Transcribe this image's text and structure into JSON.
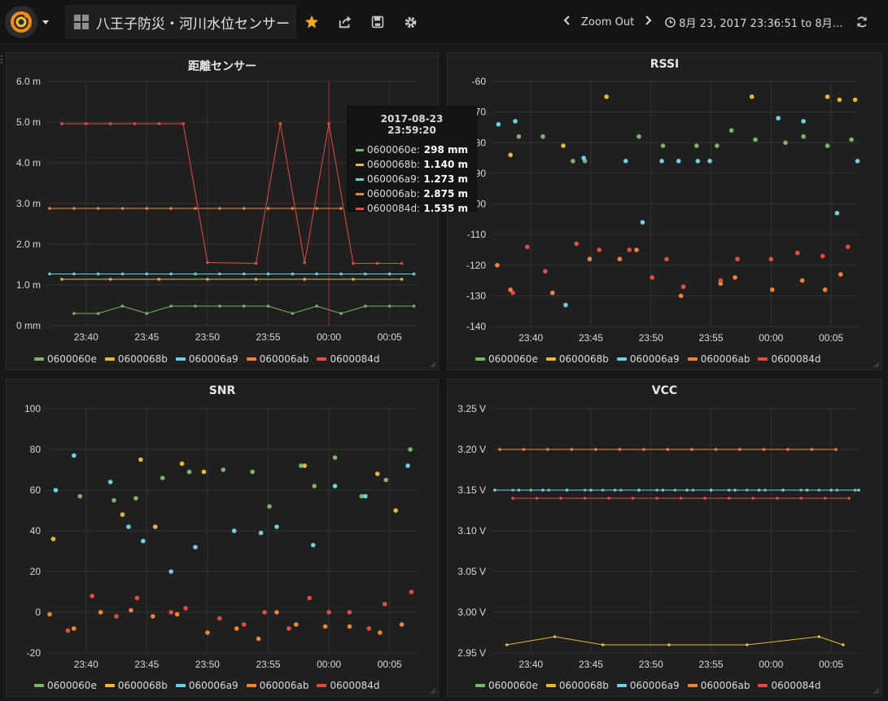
{
  "nav": {
    "title": "八王子防災・河川水位センサー",
    "zoom_out": "Zoom Out",
    "time_range": "8月 23, 2017 23:36:51 to 8月…"
  },
  "colors": {
    "0600060e": "#7eb26d",
    "0600068b": "#eab839",
    "060006a9": "#6ed0e0",
    "060006ab": "#ef843c",
    "0600084d": "#e24d42"
  },
  "series_names": [
    "0600060e",
    "0600068b",
    "060006a9",
    "060006ab",
    "0600084d"
  ],
  "tooltip": {
    "time": "2017-08-23 23:59:20",
    "rows": [
      {
        "name": "0600060e:",
        "value": "298 mm",
        "color": "#7eb26d"
      },
      {
        "name": "0600068b:",
        "value": "1.140 m",
        "color": "#eab839"
      },
      {
        "name": "060006a9:",
        "value": "1.273 m",
        "color": "#6ed0e0"
      },
      {
        "name": "060006ab:",
        "value": "2.875 m",
        "color": "#ef843c"
      },
      {
        "name": "0600084d:",
        "value": "1.535 m",
        "color": "#e24d42"
      }
    ]
  },
  "chart_data": [
    {
      "type": "line",
      "title": "距離センサー",
      "x_ticks": [
        "23:40",
        "23:45",
        "23:50",
        "23:55",
        "00:00",
        "00:05"
      ],
      "y_ticks": [
        "0 mm",
        "1.0 m",
        "2.0 m",
        "3.0 m",
        "4.0 m",
        "5.0 m",
        "6.0 m"
      ],
      "ylim": [
        0,
        6
      ],
      "x_minutes_range": [
        -23.2,
        7.3
      ],
      "cursor_minute": 0,
      "series": [
        {
          "name": "0600060e",
          "x": [
            -21,
            -19,
            -17,
            -15,
            -13,
            -11,
            -9,
            -7,
            -5,
            -3,
            -1,
            1,
            3,
            5,
            7
          ],
          "y": [
            0.3,
            0.3,
            0.48,
            0.3,
            0.48,
            0.48,
            0.48,
            0.48,
            0.48,
            0.3,
            0.48,
            0.3,
            0.48,
            0.48,
            0.48
          ]
        },
        {
          "name": "0600068b",
          "x": [
            -22,
            -18,
            -14,
            -10,
            -6,
            -2,
            2,
            6
          ],
          "y": [
            1.14,
            1.14,
            1.14,
            1.14,
            1.14,
            1.14,
            1.14,
            1.14
          ]
        },
        {
          "name": "060006a9",
          "x": [
            -23,
            -21,
            -19,
            -17,
            -15,
            -13,
            -11,
            -9,
            -7,
            -5,
            -3,
            -1,
            1,
            3,
            5,
            7
          ],
          "y": [
            1.27,
            1.27,
            1.27,
            1.27,
            1.27,
            1.27,
            1.27,
            1.27,
            1.27,
            1.27,
            1.27,
            1.27,
            1.27,
            1.27,
            1.27,
            1.27
          ]
        },
        {
          "name": "060006ab",
          "x": [
            -23,
            -21,
            -19,
            -17,
            -15,
            -13,
            -11,
            -9,
            -7,
            -5,
            -3,
            -1,
            1
          ],
          "y": [
            2.88,
            2.88,
            2.88,
            2.88,
            2.88,
            2.88,
            2.88,
            2.88,
            2.88,
            2.88,
            2.88,
            2.88,
            2.88
          ]
        },
        {
          "name": "0600084d",
          "x": [
            -22,
            -20,
            -18,
            -16,
            -14,
            -12,
            -10,
            -6,
            -4,
            -2,
            0,
            2,
            4,
            6
          ],
          "y": [
            4.96,
            4.96,
            4.96,
            4.96,
            4.96,
            4.96,
            1.55,
            1.53,
            4.96,
            1.55,
            4.96,
            1.53,
            1.53,
            1.53
          ]
        }
      ]
    },
    {
      "type": "scatter",
      "title": "RSSI",
      "x_ticks": [
        "23:40",
        "23:45",
        "23:50",
        "23:55",
        "00:00",
        "00:05"
      ],
      "y_ticks": [
        "-140",
        "-130",
        "-120",
        "-110",
        "-100",
        "-90",
        "-80",
        "-70",
        "-60"
      ],
      "ylim": [
        -140,
        -60
      ],
      "series": [
        {
          "name": "0600060e",
          "x": [
            -21,
            -19,
            -16.5,
            -15.5,
            -11,
            -9,
            -6.2,
            -4.5,
            -3.3,
            -1.3,
            1.2,
            2.7,
            4.7,
            6.7
          ],
          "y": [
            -78,
            -78,
            -86,
            -86,
            -78,
            -81,
            -81,
            -81,
            -76,
            -79,
            -80,
            -78,
            -81,
            -79
          ]
        },
        {
          "name": "0600068b",
          "x": [
            -21.7,
            -17.3,
            -13.7,
            -1.6,
            4.7,
            5.7,
            7.0
          ],
          "y": [
            -84,
            -81,
            -65,
            -65,
            -65,
            -66,
            -66
          ]
        },
        {
          "name": "060006a9",
          "x": [
            -22.7,
            -21.3,
            -17.1,
            -15.6,
            -12.1,
            -10.7,
            -9.1,
            -7.7,
            -6.1,
            -5.1,
            0.6,
            2.7,
            5.5,
            7.2
          ],
          "y": [
            -74,
            -73,
            -133,
            -85,
            -86,
            -106,
            -86,
            -86,
            -86,
            -86,
            -72,
            -73,
            -103,
            -86
          ]
        },
        {
          "name": "060006ab",
          "x": [
            -22.8,
            -21.7,
            -18.2,
            -15.1,
            -12.6,
            -11.2,
            -7.5,
            -4.2,
            -3.0,
            0.1,
            2.6,
            4.5,
            5.8
          ],
          "y": [
            -120,
            -128,
            -129,
            -118,
            -118,
            -115,
            -130,
            -126,
            -124,
            -128,
            -125,
            -128,
            -123
          ]
        },
        {
          "name": "0600084d",
          "x": [
            -21.5,
            -20.3,
            -18.8,
            -16.2,
            -14.3,
            -11.8,
            -9.9,
            -8.7,
            -7.3,
            -4.2,
            -2.8,
            0.0,
            2.2,
            4.3,
            6.4
          ],
          "y": [
            -129,
            -114,
            -122,
            -113,
            -115,
            -115,
            -124,
            -118,
            -127,
            -125,
            -118,
            -118,
            -116,
            -117,
            -114
          ]
        }
      ]
    },
    {
      "type": "scatter",
      "title": "SNR",
      "x_ticks": [
        "23:40",
        "23:45",
        "23:50",
        "23:55",
        "00:00",
        "00:05"
      ],
      "y_ticks": [
        "-20",
        "0",
        "20",
        "40",
        "60",
        "80",
        "100"
      ],
      "ylim": [
        -20,
        100
      ],
      "series": [
        {
          "name": "0600060e",
          "x": [
            -20.5,
            -17.7,
            -15.9,
            -13.7,
            -11.5,
            -8.7,
            -6.3,
            -4.9,
            -2.3,
            -1.2,
            0.5,
            2.7,
            4.7,
            6.7
          ],
          "y": [
            57,
            55,
            56,
            66,
            69,
            70,
            69,
            52,
            72,
            62,
            76,
            57,
            65,
            80
          ]
        },
        {
          "name": "0600068b",
          "x": [
            -22.7,
            -17.0,
            -15.5,
            -14.3,
            -12.1,
            -10.3,
            -2.0,
            4.0,
            5.5
          ],
          "y": [
            36,
            48,
            75,
            42,
            73,
            69,
            72,
            68,
            50
          ]
        },
        {
          "name": "060006a9",
          "x": [
            -22.5,
            -21.0,
            -18.0,
            -16.5,
            -15.3,
            -13.0,
            -11.0,
            -7.8,
            -5.6,
            -4.3,
            -1.3,
            0.5,
            3.0,
            6.5
          ],
          "y": [
            60,
            77,
            64,
            42,
            35,
            20,
            32,
            40,
            39,
            42,
            33,
            62,
            57,
            72
          ]
        },
        {
          "name": "060006ab",
          "x": [
            -23.0,
            -21.0,
            -18.8,
            -16.3,
            -14.5,
            -12.5,
            -10.0,
            -7.6,
            -5.8,
            -4.3,
            -2.7,
            -0.3,
            1.7,
            4.2,
            6.0
          ],
          "y": [
            -1,
            -8,
            0,
            1,
            -2,
            -1,
            -10,
            -8,
            -13,
            0,
            -6,
            -7,
            -7,
            -10,
            -6
          ]
        },
        {
          "name": "0600084d",
          "x": [
            -21.5,
            -19.5,
            -17.5,
            -15.8,
            -13.0,
            -11.8,
            -9.0,
            -7.0,
            -5.3,
            -3.3,
            -1.6,
            0.0,
            1.7,
            3.3,
            4.6,
            6.8
          ],
          "y": [
            -9,
            8,
            -2,
            7,
            0,
            2,
            -3,
            -6,
            0,
            -8,
            7,
            0,
            0,
            -8,
            4,
            10
          ]
        }
      ]
    },
    {
      "type": "line",
      "title": "VCC",
      "x_ticks": [
        "23:40",
        "23:45",
        "23:50",
        "23:55",
        "00:00",
        "00:05"
      ],
      "y_ticks": [
        "2.95 V",
        "3.00 V",
        "3.05 V",
        "3.10 V",
        "3.15 V",
        "3.20 V",
        "3.25 V"
      ],
      "ylim": [
        2.95,
        3.25
      ],
      "series": [
        {
          "name": "0600060e",
          "x": [
            -23.0,
            -21.5,
            -20.0,
            -18.5,
            -17.0,
            -15.5,
            -14.0,
            -12.5,
            -11.0,
            -9.5,
            -8.0,
            -6.5,
            -5.0,
            -3.5,
            -2.0,
            -0.5,
            1.0,
            2.5,
            4.0,
            5.5,
            7.0
          ],
          "y": [
            3.15,
            3.15,
            3.15,
            3.15,
            3.15,
            3.15,
            3.15,
            3.15,
            3.15,
            3.15,
            3.15,
            3.15,
            3.15,
            3.15,
            3.15,
            3.15,
            3.15,
            3.15,
            3.15,
            3.15,
            3.15
          ]
        },
        {
          "name": "0600068b",
          "x": [
            -22.0,
            -18.0,
            -14.0,
            -8.5,
            -2.0,
            4.0,
            6.0
          ],
          "y": [
            2.96,
            2.97,
            2.96,
            2.96,
            2.96,
            2.97,
            2.96
          ]
        },
        {
          "name": "060006a9",
          "x": [
            -23.0,
            -21.0,
            -19.0,
            -17.0,
            -15.0,
            -13.0,
            -11.0,
            -9.0,
            -7.0,
            -5.0,
            -3.0,
            -1.0,
            1.0,
            3.0,
            5.0,
            7.3
          ],
          "y": [
            3.15,
            3.15,
            3.15,
            3.15,
            3.15,
            3.15,
            3.15,
            3.15,
            3.15,
            3.15,
            3.15,
            3.15,
            3.15,
            3.15,
            3.15,
            3.15
          ]
        },
        {
          "name": "060006ab",
          "x": [
            -22.6,
            -20.6,
            -18.6,
            -16.6,
            -14.6,
            -12.6,
            -10.6,
            -8.6,
            -6.6,
            -4.6,
            -2.6,
            -0.6,
            1.4,
            3.4,
            5.4
          ],
          "y": [
            3.2,
            3.2,
            3.2,
            3.2,
            3.2,
            3.2,
            3.2,
            3.2,
            3.2,
            3.2,
            3.2,
            3.2,
            3.2,
            3.2,
            3.2
          ]
        },
        {
          "name": "0600084d",
          "x": [
            -21.5,
            -19.5,
            -17.5,
            -15.5,
            -13.5,
            -11.5,
            -9.5,
            -7.5,
            -5.5,
            -3.5,
            -1.5,
            0.5,
            2.5,
            4.5,
            6.5
          ],
          "y": [
            3.14,
            3.14,
            3.14,
            3.14,
            3.14,
            3.14,
            3.14,
            3.14,
            3.14,
            3.14,
            3.14,
            3.14,
            3.14,
            3.14,
            3.14
          ]
        }
      ]
    }
  ]
}
